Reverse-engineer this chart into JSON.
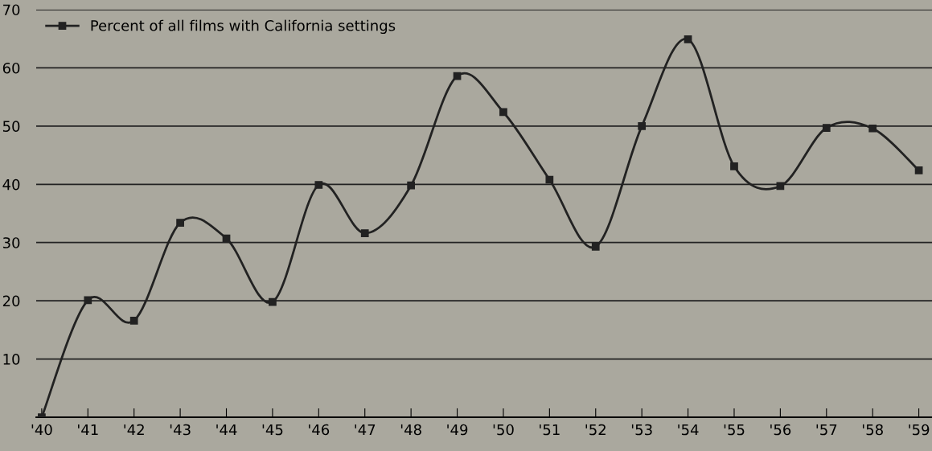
{
  "chart_data": {
    "type": "line",
    "categories": [
      "'40",
      "'41",
      "'42",
      "'43",
      "'44",
      "'45",
      "'46",
      "'47",
      "'48",
      "'49",
      "'50",
      "'51",
      "'52",
      "'53",
      "'54",
      "'55",
      "'56",
      "'57",
      "'58",
      "'59"
    ],
    "series": [
      {
        "name": "Percent of all films with California settings",
        "color": "#222222",
        "values": [
          0,
          20.1,
          16.6,
          33.4,
          30.7,
          19.8,
          39.9,
          31.6,
          39.8,
          58.6,
          52.4,
          40.8,
          29.3,
          50,
          64.9,
          43.1,
          39.7,
          49.7,
          49.6,
          42.4
        ]
      }
    ],
    "ylim": [
      0,
      70
    ],
    "yticks": [
      {
        "value": 0,
        "label": null
      },
      10,
      20,
      30,
      40,
      50,
      60,
      70
    ],
    "grid": "y",
    "legend": "top left",
    "marker": "square",
    "line_style": "solid"
  }
}
